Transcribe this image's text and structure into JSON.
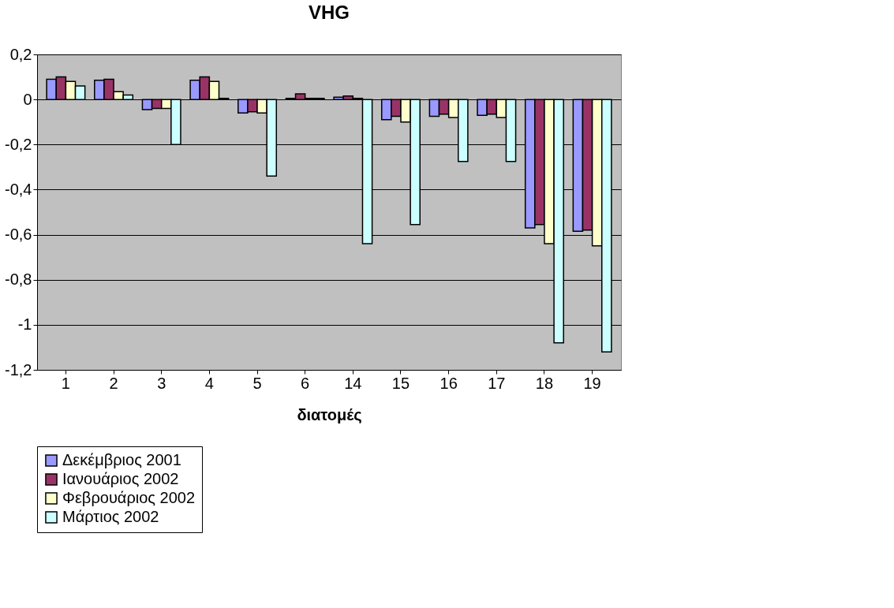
{
  "chart_data": {
    "type": "bar",
    "title": "VHG",
    "xlabel": "διατομές",
    "categories": [
      "1",
      "2",
      "3",
      "4",
      "5",
      "6",
      "14",
      "15",
      "16",
      "17",
      "18",
      "19"
    ],
    "series": [
      {
        "name": "Δεκέμβριος 2001",
        "color": "#9999ff",
        "values": [
          0.09,
          0.085,
          -0.045,
          0.085,
          -0.06,
          0.005,
          0.01,
          -0.09,
          -0.075,
          -0.07,
          -0.57,
          -0.585
        ]
      },
      {
        "name": "Ιανουάριος 2002",
        "color": "#993366",
        "values": [
          0.1,
          0.09,
          -0.04,
          0.1,
          -0.055,
          0.025,
          0.015,
          -0.075,
          -0.065,
          -0.065,
          -0.555,
          -0.58
        ]
      },
      {
        "name": "Φεβρουάριος 2002",
        "color": "#ffffcc",
        "values": [
          0.08,
          0.035,
          -0.04,
          0.08,
          -0.06,
          0.005,
          0.005,
          -0.1,
          -0.08,
          -0.08,
          -0.64,
          -0.65
        ]
      },
      {
        "name": "Μάρτιος 2002",
        "color": "#ccffff",
        "values": [
          0.06,
          0.02,
          -0.2,
          0.005,
          -0.34,
          0.005,
          -0.64,
          -0.555,
          -0.275,
          -0.275,
          -1.08,
          -1.12
        ]
      }
    ],
    "ylim": [
      -1.2,
      0.2
    ],
    "yticks": [
      {
        "value": -1.2,
        "label": "-1,2"
      },
      {
        "value": -1,
        "label": "-1"
      },
      {
        "value": -0.8,
        "label": "-0,8"
      },
      {
        "value": -0.6,
        "label": "-0,6"
      },
      {
        "value": -0.4,
        "label": "-0,4"
      },
      {
        "value": -0.2,
        "label": "-0,2"
      },
      {
        "value": 0,
        "label": "0"
      },
      {
        "value": 0.2,
        "label": "0,2"
      }
    ],
    "grid": "y",
    "legend": "bottom"
  }
}
